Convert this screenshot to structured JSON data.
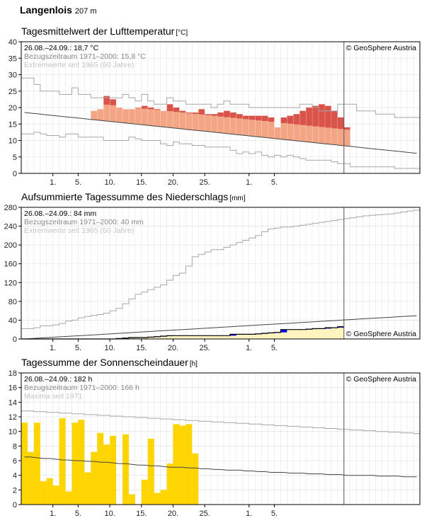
{
  "station": {
    "name": "Langenlois",
    "elevation": "207 m"
  },
  "copyright": "© GeoSphere Austria",
  "x_axis": {
    "days": 63,
    "first_date": "2024-07-27",
    "current_day_index": 51,
    "tick_labels": [
      "1.",
      "5.",
      "10.",
      "15.",
      "20.",
      "25.",
      "1.",
      "5."
    ],
    "tick_days": [
      5,
      9,
      14,
      19,
      24,
      29,
      36,
      40
    ]
  },
  "chart_data": [
    {
      "type": "bar",
      "title": "Tagesmittelwert der Lufttemperatur",
      "unit": "[°C]",
      "info": [
        "26.08.–24.09.: 18,7 °C",
        "Bezugszeitraum 1971–2000: 15,8 °C",
        "Extremwerte seit 1965 (60 Jahre)"
      ],
      "ylim": [
        0,
        40
      ],
      "yticks": [
        0,
        5,
        10,
        15,
        20,
        25,
        30,
        35,
        40
      ],
      "series": [
        {
          "name": "Tagesmittel",
          "values": [
            19,
            19.5,
            23.5,
            22.5,
            20,
            19.5,
            19.5,
            20,
            20.5,
            20,
            19.5,
            19,
            21,
            20,
            19,
            18.5,
            18.5,
            19.5,
            18,
            18,
            18.5,
            19,
            18.5,
            18,
            17.5,
            17.5,
            17.5,
            17.5,
            17,
            14,
            17,
            17.5,
            18,
            19,
            20,
            20.5,
            21,
            20.5,
            19,
            17,
            14
          ]
        },
        {
          "name": "Normal",
          "values": [
            18.5,
            18.3,
            18.1,
            17.9,
            17.7,
            17.5,
            17.3,
            17.1,
            16.9,
            16.7,
            16.5,
            16.3,
            16.1,
            15.9,
            15.7,
            15.5,
            15.3,
            15.1,
            14.9,
            14.7,
            14.5,
            14.3,
            14.1,
            13.9,
            13.7,
            13.5,
            13.3,
            13.1,
            12.9,
            12.7,
            12.5,
            12.3,
            12.1,
            11.9,
            11.7,
            11.5,
            11.3,
            11.1,
            10.9,
            10.7,
            10.5,
            10.3,
            10.1,
            9.9,
            9.7,
            9.5,
            9.3,
            9.1,
            8.9,
            8.7,
            8.5,
            8.3,
            8.1,
            7.9,
            7.7,
            7.5,
            7.3,
            7.1,
            6.9,
            6.7,
            6.5,
            6.3,
            6.1
          ]
        },
        {
          "name": "Maximum",
          "values": [
            29,
            29,
            27,
            25,
            25,
            25,
            24,
            24,
            26,
            24,
            24,
            23,
            23,
            23,
            23,
            23,
            24,
            23,
            22,
            24,
            22,
            21,
            21,
            23,
            22,
            22,
            21,
            21,
            21,
            21,
            20,
            21,
            22,
            21,
            21,
            21,
            20,
            20,
            20,
            20,
            20,
            20,
            20,
            20,
            21,
            21,
            20,
            19,
            19,
            19,
            21,
            21,
            21,
            19,
            19,
            19,
            18,
            18,
            18,
            17,
            17,
            17,
            17
          ]
        },
        {
          "name": "Minimum",
          "values": [
            12,
            12,
            12.5,
            12,
            11.5,
            11.5,
            11,
            12,
            12,
            11,
            11,
            11,
            11,
            10,
            10,
            10,
            10,
            11,
            10.5,
            10,
            10,
            10,
            9,
            8.5,
            9.5,
            9,
            9,
            8.5,
            8.5,
            8,
            8,
            8,
            8,
            7,
            6,
            6.5,
            6,
            6.5,
            5.5,
            5,
            5.5,
            5,
            5.5,
            5,
            4.5,
            4,
            4,
            4,
            4,
            3.5,
            3,
            3,
            2,
            2,
            2,
            2,
            2,
            2,
            2,
            1.5,
            1.5,
            1.5,
            1.5
          ]
        }
      ]
    },
    {
      "type": "area",
      "title": "Aufsummierte Tagessumme des Niederschlags",
      "unit": "[mm]",
      "info": [
        "26.08.–24.09.: 84 mm",
        "Bezugszeitraum 1971–2000: 40 mm",
        "Extremwerte seit 1965 (60 Jahre)"
      ],
      "ylim": [
        0,
        280
      ],
      "yticks": [
        0,
        40,
        80,
        120,
        160,
        200,
        240,
        280
      ],
      "series": [
        {
          "name": "Summe",
          "values": [
            0,
            0,
            0,
            0,
            0,
            0,
            0,
            0,
            0,
            0,
            0,
            0,
            0,
            0,
            0,
            1,
            2,
            3,
            3,
            3,
            4,
            5,
            6,
            7,
            7,
            7,
            7,
            7,
            7,
            7,
            7,
            7,
            7,
            10,
            10,
            10,
            10,
            11,
            12,
            13,
            14,
            20,
            20,
            20,
            20,
            21,
            22,
            22,
            24,
            24,
            26,
            30
          ]
        },
        {
          "name": "Normal",
          "values": [
            0,
            0.8,
            1.6,
            2.4,
            3.2,
            4,
            4.8,
            5.6,
            6.4,
            7.2,
            8,
            8.8,
            9.6,
            10.4,
            11.2,
            12,
            12.8,
            13.6,
            14.4,
            15.2,
            16,
            16.8,
            17.6,
            18.4,
            19.2,
            20,
            20.8,
            21.6,
            22.4,
            23.2,
            24,
            24.8,
            25.6,
            26.4,
            27.2,
            28,
            28.8,
            29.6,
            30.4,
            31.2,
            32,
            32.8,
            33.6,
            34.4,
            35.2,
            36,
            36.8,
            37.6,
            38.4,
            39.2,
            40,
            40.8,
            41.6,
            42.4,
            43.2,
            44,
            44.8,
            45.6,
            46.4,
            47.2,
            48,
            48.8,
            49.6
          ]
        },
        {
          "name": "Maximum",
          "values": [
            22,
            22,
            24,
            28,
            28,
            30,
            33,
            38,
            40,
            45,
            48,
            50,
            52,
            55,
            60,
            65,
            75,
            85,
            95,
            100,
            105,
            110,
            115,
            125,
            135,
            140,
            155,
            175,
            180,
            185,
            190,
            190,
            195,
            200,
            205,
            210,
            215,
            220,
            228,
            234,
            236,
            238,
            238,
            240,
            242,
            244,
            246,
            248,
            250,
            252,
            254,
            256,
            258,
            260,
            262,
            263,
            264,
            265,
            266,
            268,
            270,
            272,
            274
          ]
        },
        {
          "name": "Minimum",
          "values": [
            0,
            0,
            0,
            0,
            0,
            0,
            0,
            0,
            0,
            0,
            0,
            0,
            0,
            0,
            0,
            0,
            0,
            0,
            0,
            0,
            0,
            0,
            0,
            0,
            0,
            0,
            0,
            0,
            0,
            0,
            0,
            0,
            0,
            0,
            0,
            0,
            0,
            0,
            0,
            0,
            0,
            0,
            0,
            0,
            0,
            0,
            0,
            0,
            0,
            0,
            0,
            0,
            0,
            0,
            0,
            0,
            0,
            0,
            0,
            0,
            0,
            0,
            0
          ]
        }
      ]
    },
    {
      "type": "bar",
      "title": "Tagessumme der Sonnenscheindauer",
      "unit": "[h]",
      "info": [
        "26.08.–24.09.: 182 h",
        "Bezugszeitraum 1971–2000: 166 h",
        "Maxima seit 1971"
      ],
      "ylim": [
        0,
        18
      ],
      "yticks": [
        0,
        2,
        4,
        6,
        8,
        10,
        12,
        14,
        16,
        18
      ],
      "series": [
        {
          "name": "Tagessumme",
          "values": [
            11.2,
            7.2,
            11.2,
            3.2,
            3.6,
            2.6,
            11.8,
            1.8,
            11.2,
            11.6,
            4.4,
            7.2,
            9.8,
            8.2,
            9.4,
            0,
            9.6,
            1.4,
            0,
            3.4,
            9,
            1.6,
            2,
            5.6,
            11,
            10.8,
            11,
            7
          ]
        },
        {
          "name": "Normal",
          "values": [
            6.5,
            6.5,
            6.4,
            6.3,
            6.3,
            6.2,
            6.1,
            6.1,
            6,
            6,
            5.9,
            5.9,
            5.8,
            5.8,
            5.7,
            5.6,
            5.6,
            5.5,
            5.4,
            5.4,
            5.3,
            5.3,
            5.2,
            5.1,
            5.1,
            5.1,
            5,
            5,
            4.9,
            4.9,
            4.8,
            4.8,
            4.7,
            4.7,
            4.7,
            4.6,
            4.6,
            4.5,
            4.5,
            4.4,
            4.4,
            4.4,
            4.3,
            4.3,
            4.3,
            4.2,
            4.2,
            4.2,
            4.1,
            4.1,
            4.1,
            4,
            4,
            4,
            4,
            4,
            3.9,
            3.9,
            3.9,
            3.9,
            3.8,
            3.8,
            3.8
          ]
        },
        {
          "name": "Maximum",
          "values": [
            12.8,
            12.8,
            12.7,
            12.7,
            12.6,
            12.6,
            12.5,
            12.5,
            12.4,
            12.4,
            12.3,
            12.3,
            12.2,
            12.2,
            12.1,
            12.1,
            12,
            12,
            11.9,
            11.9,
            11.8,
            11.8,
            11.7,
            11.7,
            11.6,
            11.6,
            11.5,
            11.5,
            11.4,
            11.4,
            11.3,
            11.3,
            11.2,
            11.2,
            11.1,
            11.1,
            11,
            11,
            10.9,
            10.9,
            10.8,
            10.8,
            10.7,
            10.7,
            10.6,
            10.6,
            10.5,
            10.5,
            10.4,
            10.4,
            10.3,
            10.3,
            10.2,
            10.2,
            10.1,
            10.1,
            10,
            10,
            9.9,
            9.9,
            9.8,
            9.8,
            9.7
          ]
        }
      ]
    }
  ],
  "colors": {
    "temp_above": "#f3a584",
    "temp_far_above": "#d9534a",
    "temp_below": "#8ab9d8",
    "precip_bar": "#0000f0",
    "precip_fill": "#d4eed3",
    "precip_normal_fill": "#fff3bf",
    "sun": "#ffd500",
    "grid": "#e6e6e6",
    "extreme_line": "#a6a6a6",
    "normal_line": "#444444"
  }
}
